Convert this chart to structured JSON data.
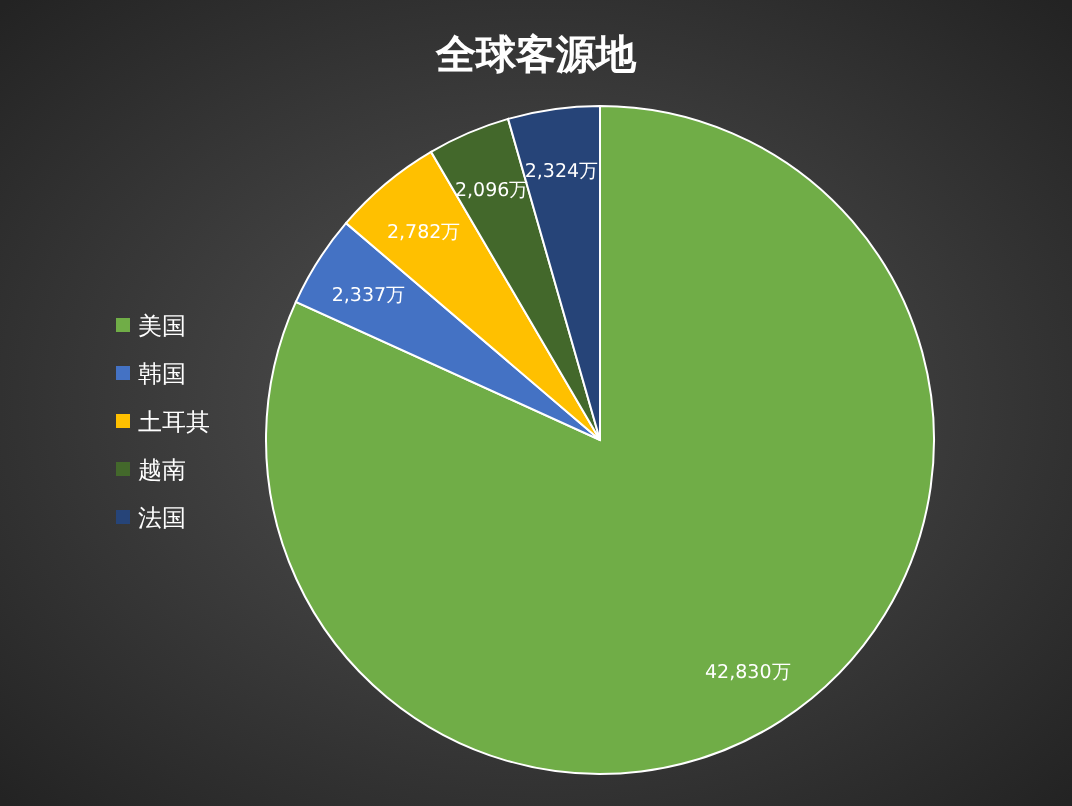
{
  "chart_data": {
    "type": "pie",
    "title": "全球客源地",
    "categories": [
      "美国",
      "韩国",
      "土耳其",
      "越南",
      "法国"
    ],
    "values": [
      42830,
      2337,
      2782,
      2096,
      2324
    ],
    "colors": [
      "#70ad47",
      "#4472c4",
      "#ffc000",
      "#43682b",
      "#264478"
    ],
    "value_labels": [
      "42,830万",
      "2,337万",
      "2,782万",
      "2,096万",
      "2,324万"
    ],
    "legend": "left"
  }
}
